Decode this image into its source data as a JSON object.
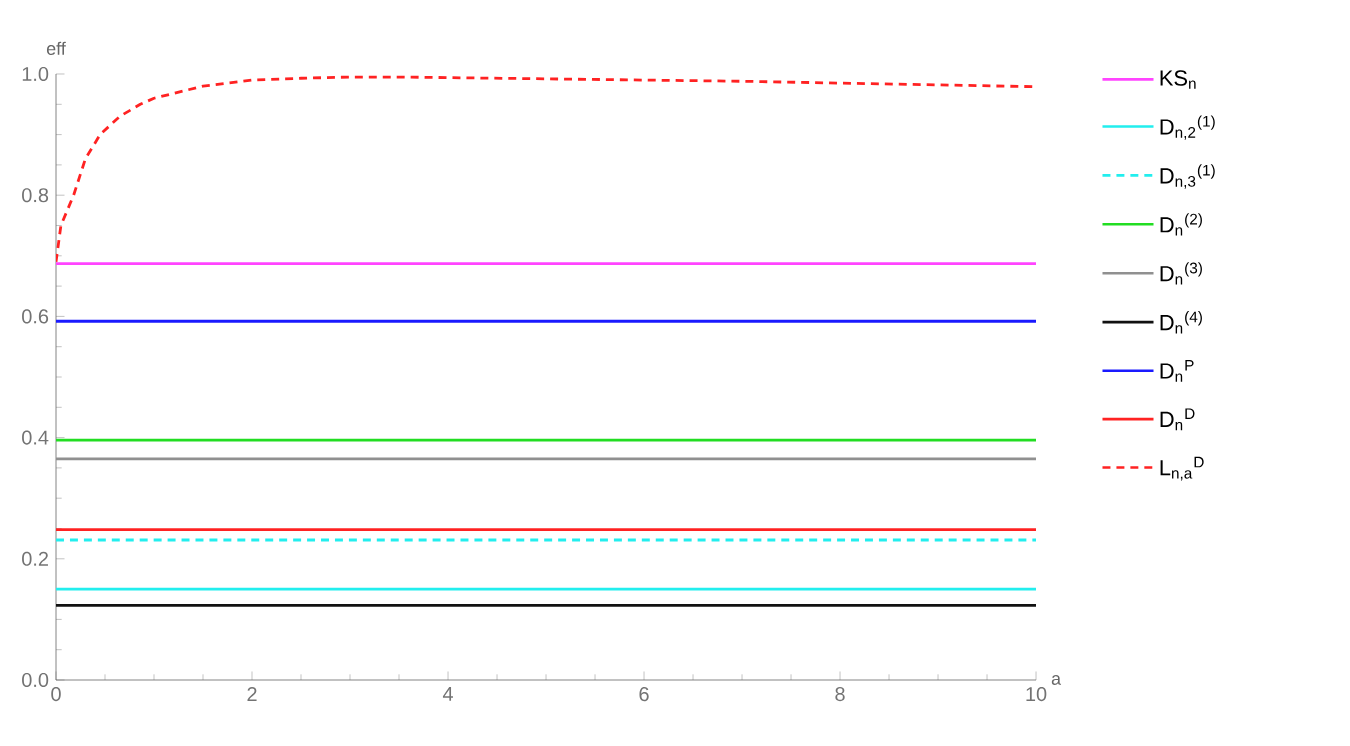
{
  "chart_data": {
    "type": "line",
    "xlabel": "a",
    "ylabel": "eff",
    "xlim": [
      0,
      10
    ],
    "ylim": [
      0,
      1
    ],
    "xticks": [
      0,
      2,
      4,
      6,
      8,
      10
    ],
    "yticks": [
      {
        "value": 0,
        "label": "0.0"
      },
      0.2,
      0.4,
      0.6,
      0.8,
      {
        "value": 1,
        "label": "1.0"
      }
    ],
    "grid": false,
    "legend": "right",
    "marker": "none",
    "series": [
      {
        "name": "KS$_{n}$",
        "color": "#ff44ff",
        "line_style": "solid",
        "x": [
          0,
          10
        ],
        "values": [
          0.687,
          0.687
        ]
      },
      {
        "name": "D$_{n,2}$$^{(1)}$",
        "color": "#22eeee",
        "line_style": "solid",
        "x": [
          0,
          10
        ],
        "values": [
          0.15,
          0.15
        ]
      },
      {
        "name": "D$_{n,3}$$^{(1)}$",
        "color": "#22eeee",
        "line_style": "dashed",
        "x": [
          0,
          10
        ],
        "values": [
          0.231,
          0.231
        ]
      },
      {
        "name": "D$_{n}$$^{(2)}$",
        "color": "#22dd22",
        "line_style": "solid",
        "x": [
          0,
          10
        ],
        "values": [
          0.396,
          0.396
        ]
      },
      {
        "name": "D$_{n}$$^{(3)}$",
        "color": "#909090",
        "line_style": "solid",
        "x": [
          0,
          10
        ],
        "values": [
          0.365,
          0.365
        ]
      },
      {
        "name": "D$_{n}$$^{(4)}$",
        "color": "#111111",
        "line_style": "solid",
        "x": [
          0,
          10
        ],
        "values": [
          0.123,
          0.123
        ]
      },
      {
        "name": "D$_{n}$$^{P}$",
        "color": "#1a1aff",
        "line_style": "solid",
        "x": [
          0,
          10
        ],
        "values": [
          0.592,
          0.592
        ]
      },
      {
        "name": "D$_{n}$$^{D}$",
        "color": "#ff2222",
        "line_style": "solid",
        "x": [
          0,
          10
        ],
        "values": [
          0.248,
          0.248
        ]
      },
      {
        "name": "L$_{n,a}$$^{D}$",
        "color": "#ff2222",
        "line_style": "dashed",
        "x": [
          0,
          0.05,
          0.18,
          0.3,
          0.45,
          0.65,
          0.86,
          1,
          1.5,
          2,
          2.5,
          3,
          3.5,
          4,
          5,
          6,
          7,
          8,
          9,
          10
        ],
        "values": [
          0.69,
          0.75,
          0.8,
          0.86,
          0.9,
          0.93,
          0.95,
          0.96,
          0.98,
          0.99,
          0.993,
          0.995,
          0.995,
          0.994,
          0.992,
          0.99,
          0.988,
          0.985,
          0.982,
          0.979
        ]
      }
    ]
  }
}
